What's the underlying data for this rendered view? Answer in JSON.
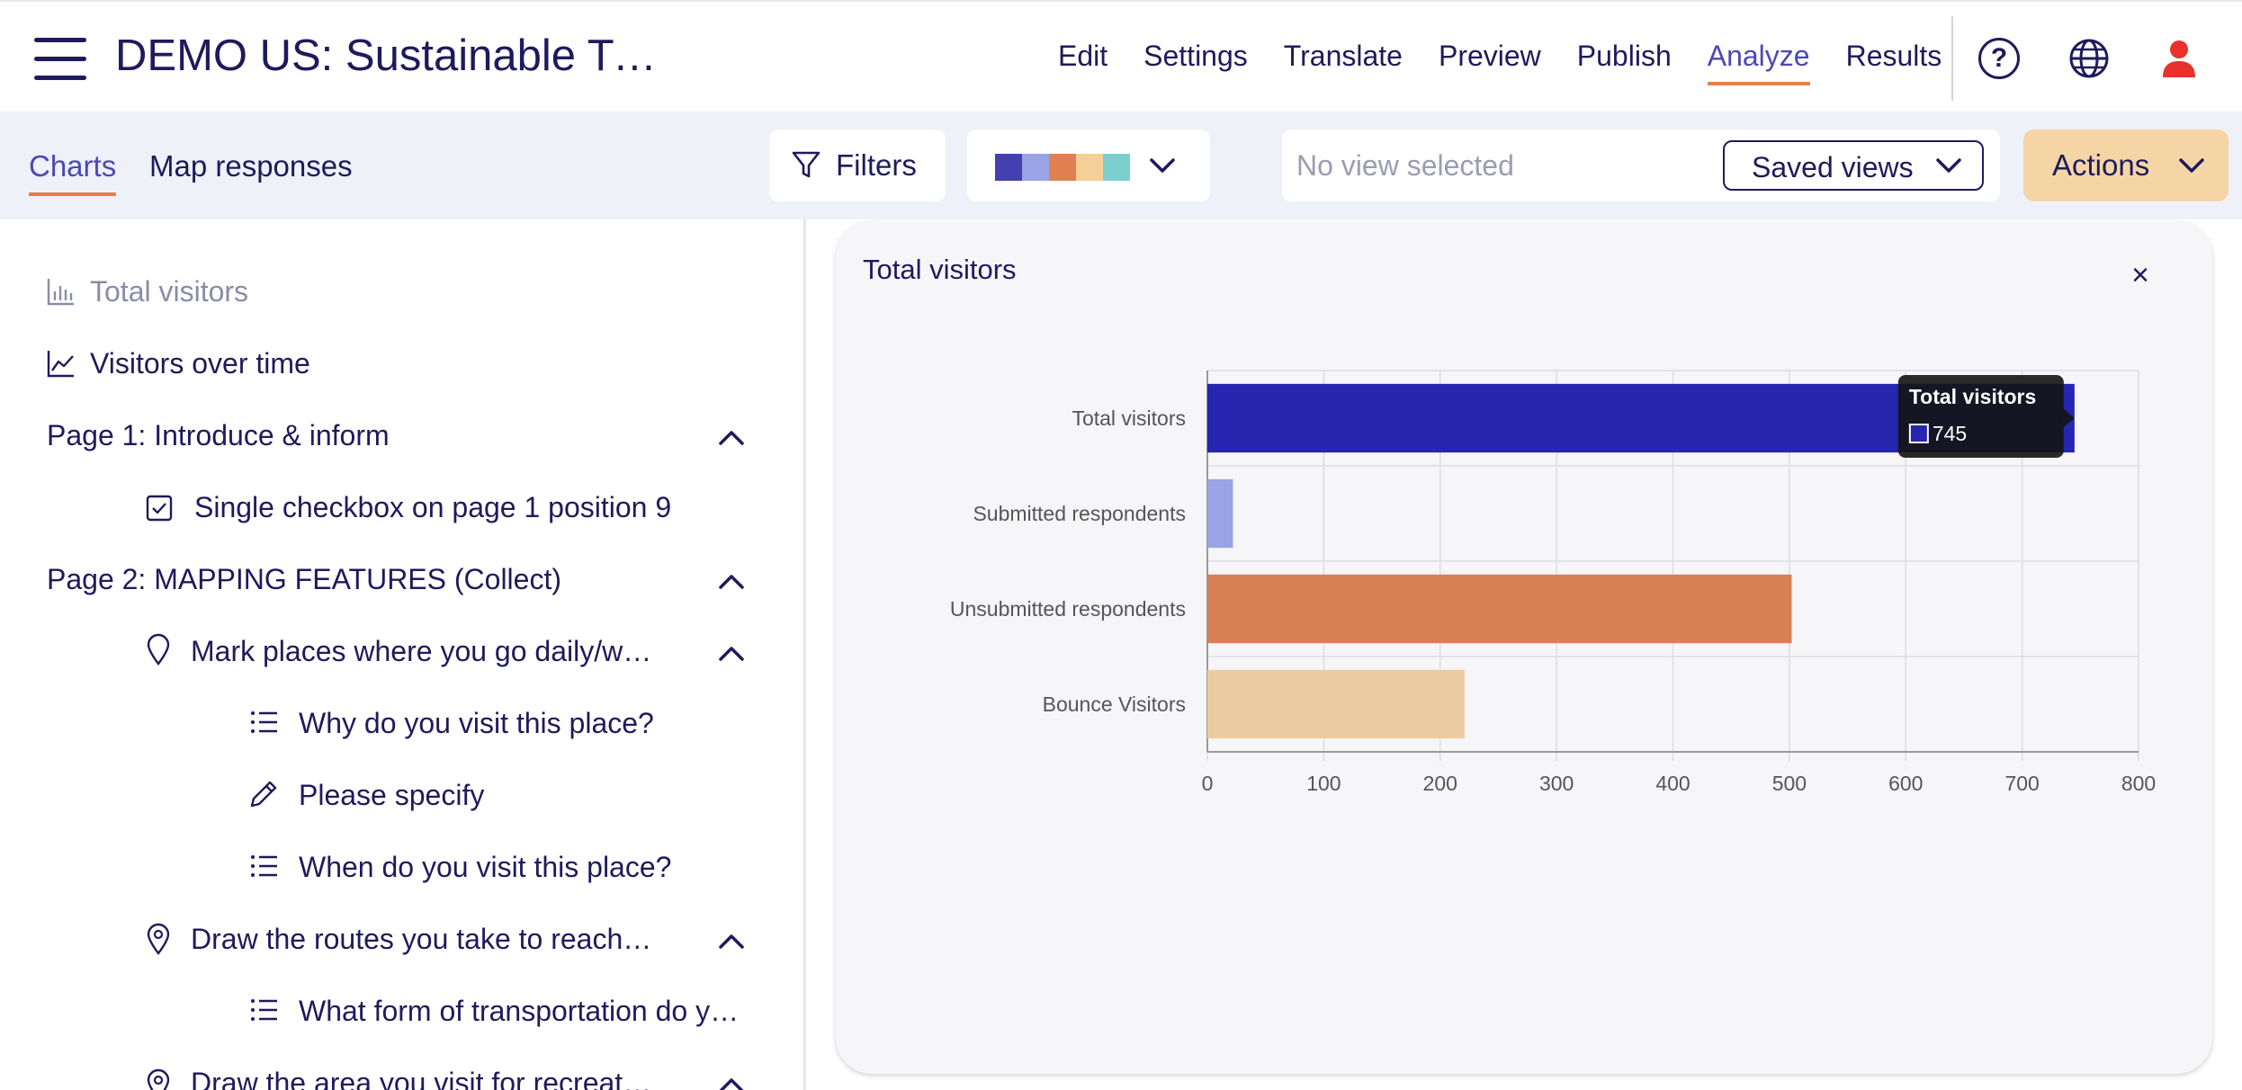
{
  "header": {
    "title": "DEMO US: Sustainable Tra…",
    "nav": [
      "Edit",
      "Settings",
      "Translate",
      "Preview",
      "Publish",
      "Analyze",
      "Results"
    ],
    "active_nav": "Analyze",
    "icons": [
      "hamburger-icon",
      "help-icon",
      "globe-icon",
      "user-icon"
    ]
  },
  "toolbar": {
    "tabs": [
      "Charts",
      "Map responses"
    ],
    "active_tab": "Charts",
    "filters_label": "Filters",
    "palette": [
      "#4540b0",
      "#9aa3e6",
      "#e0804f",
      "#f5cf98",
      "#7ccfcf"
    ],
    "view_placeholder": "No view selected",
    "saved_views_label": "Saved views",
    "actions_label": "Actions"
  },
  "sidebar": {
    "items": [
      {
        "label": "Total visitors",
        "icon": "bar-chart-icon"
      },
      {
        "label": "Visitors over time",
        "icon": "line-chart-icon"
      },
      {
        "label": "Page 1: Introduce & inform"
      },
      {
        "label": "Single checkbox on page 1 position 9",
        "icon": "checkbox-icon"
      },
      {
        "label": "Page 2: MAPPING FEATURES (Collect)"
      },
      {
        "label": "Mark places where you go daily/w…",
        "icon": "map-pin-icon"
      },
      {
        "label": "Why do you visit this place?",
        "icon": "list-icon"
      },
      {
        "label": "Please specify",
        "icon": "pencil-icon"
      },
      {
        "label": "When do you visit this place?",
        "icon": "list-icon"
      },
      {
        "label": "Draw the routes you take to reach …",
        "icon": "route-pin-icon"
      },
      {
        "label": "What form of transportation do y…",
        "icon": "list-icon"
      },
      {
        "label": "Draw the area you visit for recreat…",
        "icon": "area-pin-icon"
      }
    ]
  },
  "card": {
    "title": "Total visitors",
    "close_label": "×"
  },
  "chart_data": {
    "type": "bar",
    "orientation": "horizontal",
    "title": "Total visitors",
    "categories": [
      "Total visitors",
      "Submitted respondents",
      "Unsubmitted respondents",
      "Bounce Visitors"
    ],
    "values": [
      745,
      22,
      502,
      221
    ],
    "colors": [
      "#2626b0",
      "#9aa3e6",
      "#d97f56",
      "#eccba0"
    ],
    "xlim": [
      0,
      800
    ],
    "xticks": [
      "0",
      "100",
      "200",
      "300",
      "400",
      "500",
      "600",
      "700",
      "800"
    ],
    "grid": true,
    "tooltip": {
      "title": "Total visitors",
      "value": "745"
    }
  }
}
